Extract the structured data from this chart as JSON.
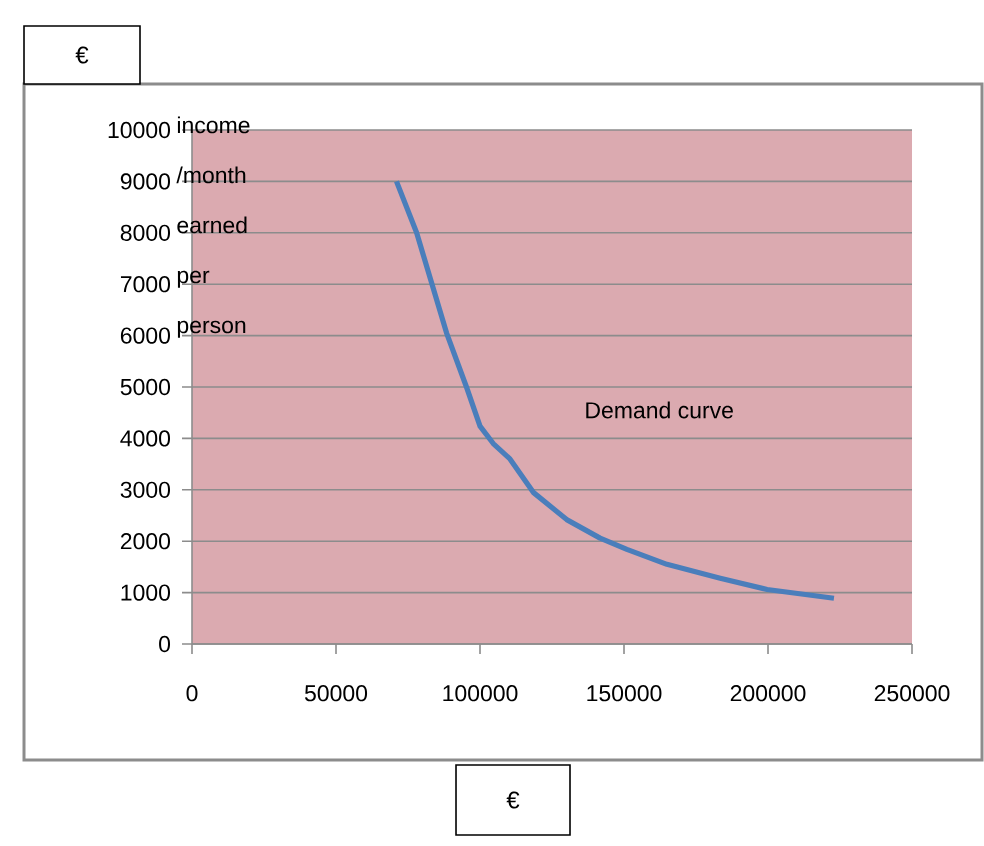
{
  "chart_data": {
    "type": "line",
    "xlabel": "€",
    "ylabel": "€",
    "annotations": [
      "income /month earned per person",
      "Demand curve"
    ],
    "x": [
      71000,
      78000,
      88400,
      95300,
      100000,
      104600,
      110400,
      118500,
      130100,
      141700,
      151000,
      164900,
      183400,
      199700,
      222900
    ],
    "series": [
      {
        "color": "#4a7ebb",
        "values": [
          9000,
          8000,
          6050,
          5000,
          4240,
          3900,
          3600,
          2950,
          2420,
          2060,
          1840,
          1550,
          1280,
          1060,
          890
        ]
      }
    ],
    "xlim": [
      0,
      250000
    ],
    "ylim": [
      0,
      10000
    ],
    "xticks": [
      0,
      50000,
      100000,
      150000,
      200000,
      250000
    ],
    "yticks": [
      0,
      1000,
      2000,
      3000,
      4000,
      5000,
      6000,
      7000,
      8000,
      9000,
      10000
    ],
    "grid": "y",
    "marker": "none",
    "line_style": "solid"
  }
}
